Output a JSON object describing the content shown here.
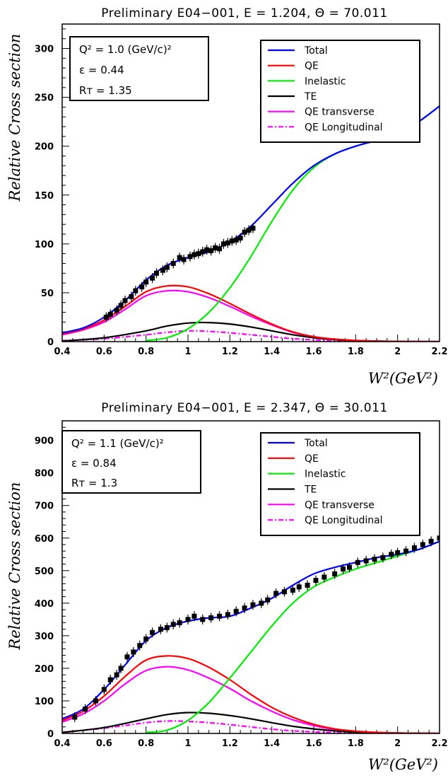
{
  "chart_data": [
    {
      "type": "line",
      "title": "Preliminary E04−001, E = 1.204, Θ = 70.011",
      "ylabel": "Relative Cross section",
      "xlabel": "W²(GeV²)",
      "xlim": [
        0.4,
        2.2
      ],
      "ylim": [
        0,
        325
      ],
      "xticks": [
        0.4,
        0.6,
        0.8,
        1,
        1.2,
        1.4,
        1.6,
        1.8,
        2,
        2.2
      ],
      "xtick_labels": [
        "0.4",
        "0.6",
        "0.8",
        "1",
        "1.2",
        "1.4",
        "1.6",
        "1.8",
        "2",
        "2.2"
      ],
      "yticks": [
        0,
        50,
        100,
        150,
        200,
        250,
        300
      ],
      "ytick_labels": [
        "0",
        "50",
        "100",
        "150",
        "200",
        "250",
        "300"
      ],
      "info": [
        "Q² = 1.0 (GeV/c)²",
        "ε = 0.44",
        "Rᴛ = 1.35"
      ],
      "legend_position": "top-right",
      "series": [
        {
          "name": "Total",
          "color": "#0000ff",
          "style": "solid",
          "x": [
            0.4,
            0.5,
            0.6,
            0.7,
            0.8,
            0.9,
            1.0,
            1.1,
            1.2,
            1.3,
            1.4,
            1.5,
            1.6,
            1.7,
            1.8,
            1.9,
            2.0,
            2.1,
            2.2
          ],
          "y": [
            9,
            14,
            25,
            42,
            63,
            78,
            86,
            92,
            102,
            118,
            140,
            162,
            180,
            192,
            200,
            206,
            213,
            225,
            241
          ]
        },
        {
          "name": "QE",
          "color": "#ff0000",
          "style": "solid",
          "x": [
            0.4,
            0.5,
            0.6,
            0.7,
            0.8,
            0.9,
            1.0,
            1.1,
            1.2,
            1.3,
            1.4,
            1.5,
            1.6,
            1.7,
            1.8,
            1.9,
            2.0,
            2.1,
            2.2
          ],
          "y": [
            8,
            13,
            22,
            36,
            51,
            57,
            56,
            49,
            39,
            28,
            18,
            10,
            5,
            2.5,
            1.2,
            0.5,
            0.2,
            0.1,
            0
          ]
        },
        {
          "name": "Inelastic",
          "color": "#00ee00",
          "style": "solid",
          "x": [
            0.8,
            0.9,
            1.0,
            1.1,
            1.2,
            1.3,
            1.4,
            1.5,
            1.6,
            1.7,
            1.8,
            1.9,
            2.0,
            2.1,
            2.2
          ],
          "y": [
            1,
            4,
            13,
            30,
            55,
            87,
            123,
            155,
            178,
            192,
            200,
            206,
            213,
            225,
            241
          ]
        },
        {
          "name": "TE",
          "color": "#000000",
          "style": "solid",
          "x": [
            0.4,
            0.6,
            0.8,
            0.9,
            1.0,
            1.1,
            1.2,
            1.3,
            1.4,
            1.5,
            1.6,
            1.7,
            1.8,
            2.0,
            2.2
          ],
          "y": [
            0.5,
            4,
            11,
            16,
            19,
            19.5,
            18,
            15,
            11,
            7,
            4,
            2,
            1,
            0.2,
            0
          ]
        },
        {
          "name": "QE transverse",
          "color": "#ff00ff",
          "style": "solid",
          "x": [
            0.4,
            0.5,
            0.6,
            0.7,
            0.8,
            0.9,
            1.0,
            1.1,
            1.2,
            1.3,
            1.4,
            1.5,
            1.6,
            1.7,
            1.8,
            1.9,
            2.0,
            2.1,
            2.2
          ],
          "y": [
            7,
            12,
            20,
            33,
            47,
            52,
            51,
            45,
            36,
            26,
            17,
            9.5,
            5,
            2.5,
            1.2,
            0.5,
            0.2,
            0.1,
            0
          ]
        },
        {
          "name": "QE Longitudinal",
          "color": "#ff00ff",
          "style": "dashdot",
          "x": [
            0.4,
            0.6,
            0.8,
            0.9,
            1.0,
            1.1,
            1.2,
            1.3,
            1.4,
            1.5,
            1.6,
            1.7,
            1.8,
            2.0,
            2.2
          ],
          "y": [
            1,
            3,
            7,
            9.5,
            11,
            10.5,
            9,
            7,
            5,
            3,
            1.8,
            1,
            0.5,
            0.1,
            0
          ]
        }
      ],
      "data_points": {
        "x": [
          0.61,
          0.63,
          0.66,
          0.68,
          0.7,
          0.73,
          0.75,
          0.78,
          0.8,
          0.83,
          0.85,
          0.88,
          0.9,
          0.93,
          0.96,
          0.98,
          1.01,
          1.03,
          1.05,
          1.07,
          1.09,
          1.11,
          1.13,
          1.15,
          1.17,
          1.19,
          1.21,
          1.23,
          1.25,
          1.27,
          1.29,
          1.31
        ],
        "y": [
          25,
          28,
          32,
          37,
          42,
          46,
          52,
          56,
          61,
          65,
          70,
          73,
          76,
          80,
          86,
          84,
          87,
          89,
          90,
          92,
          94,
          93,
          96,
          95,
          100,
          101,
          103,
          104,
          106,
          112,
          114,
          116
        ]
      }
    },
    {
      "type": "line",
      "title": "Preliminary E04−001, E = 2.347, Θ = 30.011",
      "ylabel": "Relative Cross section",
      "xlabel": "W²(GeV²)",
      "xlim": [
        0.4,
        2.2
      ],
      "ylim": [
        0,
        960
      ],
      "xticks": [
        0.4,
        0.6,
        0.8,
        1,
        1.2,
        1.4,
        1.6,
        1.8,
        2,
        2.2
      ],
      "xtick_labels": [
        "0.4",
        "0.6",
        "0.8",
        "1",
        "1.2",
        "1.4",
        "1.6",
        "1.8",
        "2",
        "2.2"
      ],
      "yticks": [
        0,
        100,
        200,
        300,
        400,
        500,
        600,
        700,
        800,
        900
      ],
      "ytick_labels": [
        "0",
        "100",
        "200",
        "300",
        "400",
        "500",
        "600",
        "700",
        "800",
        "900"
      ],
      "info": [
        "Q² = 1.1 (GeV/c)²",
        "ε = 0.84",
        "Rᴛ = 1.3"
      ],
      "legend_position": "top-right",
      "series": [
        {
          "name": "Total",
          "color": "#0000ff",
          "style": "solid",
          "x": [
            0.4,
            0.5,
            0.6,
            0.7,
            0.8,
            0.9,
            1.0,
            1.1,
            1.2,
            1.3,
            1.4,
            1.5,
            1.6,
            1.7,
            1.8,
            1.9,
            2.0,
            2.1,
            2.2
          ],
          "y": [
            45,
            75,
            135,
            210,
            285,
            325,
            345,
            355,
            360,
            385,
            415,
            455,
            490,
            510,
            525,
            540,
            550,
            565,
            590
          ]
        },
        {
          "name": "QE",
          "color": "#ff0000",
          "style": "solid",
          "x": [
            0.4,
            0.5,
            0.6,
            0.7,
            0.8,
            0.9,
            1.0,
            1.1,
            1.2,
            1.3,
            1.4,
            1.5,
            1.6,
            1.7,
            1.8,
            1.9,
            2.0,
            2.1,
            2.2
          ],
          "y": [
            40,
            68,
            115,
            175,
            225,
            238,
            230,
            203,
            165,
            120,
            80,
            50,
            28,
            14,
            7,
            3,
            1.5,
            0.5,
            0
          ]
        },
        {
          "name": "Inelastic",
          "color": "#00ee00",
          "style": "solid",
          "x": [
            0.8,
            0.9,
            1.0,
            1.1,
            1.2,
            1.3,
            1.4,
            1.5,
            1.6,
            1.7,
            1.8,
            1.9,
            2.0,
            2.1,
            2.2
          ],
          "y": [
            3,
            10,
            40,
            95,
            170,
            250,
            330,
            400,
            450,
            480,
            505,
            525,
            545,
            565,
            590
          ]
        },
        {
          "name": "TE",
          "color": "#000000",
          "style": "solid",
          "x": [
            0.4,
            0.6,
            0.8,
            0.9,
            1.0,
            1.1,
            1.2,
            1.3,
            1.4,
            1.5,
            1.6,
            1.7,
            1.8,
            2.0,
            2.2
          ],
          "y": [
            3,
            18,
            45,
            58,
            64,
            62,
            55,
            45,
            33,
            22,
            14,
            8,
            4,
            1,
            0
          ]
        },
        {
          "name": "QE transverse",
          "color": "#ff00ff",
          "style": "solid",
          "x": [
            0.4,
            0.5,
            0.6,
            0.7,
            0.8,
            0.9,
            1.0,
            1.1,
            1.2,
            1.3,
            1.4,
            1.5,
            1.6,
            1.7,
            1.8,
            1.9,
            2.0,
            2.1,
            2.2
          ],
          "y": [
            35,
            60,
            100,
            152,
            193,
            205,
            195,
            170,
            138,
            100,
            68,
            42,
            24,
            12,
            6,
            3,
            1.2,
            0.4,
            0
          ]
        },
        {
          "name": "QE Longitudinal",
          "color": "#ff00ff",
          "style": "dashdot",
          "x": [
            0.4,
            0.6,
            0.8,
            0.9,
            1.0,
            1.1,
            1.2,
            1.3,
            1.4,
            1.5,
            1.6,
            1.7,
            1.8,
            2.0,
            2.2
          ],
          "y": [
            4,
            16,
            33,
            38,
            37,
            33,
            27,
            20,
            13,
            8,
            5,
            3,
            1.5,
            0.5,
            0
          ]
        }
      ],
      "data_points": {
        "x": [
          0.46,
          0.51,
          0.56,
          0.6,
          0.63,
          0.66,
          0.68,
          0.71,
          0.74,
          0.77,
          0.8,
          0.83,
          0.87,
          0.9,
          0.93,
          0.96,
          1.0,
          1.03,
          1.07,
          1.11,
          1.15,
          1.19,
          1.23,
          1.27,
          1.31,
          1.35,
          1.38,
          1.42,
          1.46,
          1.5,
          1.53,
          1.57,
          1.61,
          1.65,
          1.7,
          1.74,
          1.77,
          1.81,
          1.85,
          1.89,
          1.93,
          1.97,
          2.0,
          2.04,
          2.08,
          2.12,
          2.16,
          2.2
        ],
        "y": [
          50,
          75,
          100,
          135,
          165,
          180,
          200,
          235,
          250,
          270,
          290,
          310,
          320,
          325,
          335,
          340,
          350,
          360,
          350,
          355,
          360,
          365,
          375,
          385,
          395,
          400,
          410,
          430,
          435,
          440,
          450,
          455,
          470,
          480,
          490,
          505,
          510,
          525,
          530,
          535,
          540,
          550,
          555,
          560,
          570,
          580,
          590,
          600
        ]
      }
    }
  ]
}
